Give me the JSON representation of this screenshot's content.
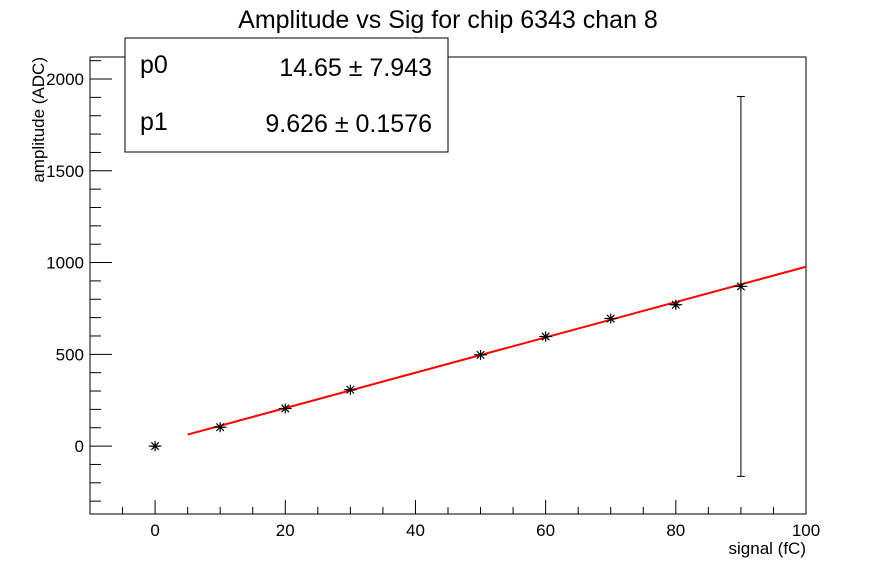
{
  "chart_data": {
    "type": "scatter",
    "title": "Amplitude vs Sig for chip 6343 chan 8",
    "xlabel": "signal (fC)",
    "ylabel": "amplitude (ADC)",
    "xlim": [
      -10,
      100
    ],
    "ylim": [
      -370,
      2120
    ],
    "x_ticks": [
      0,
      20,
      40,
      60,
      80,
      100
    ],
    "x_tick_labels": [
      "0",
      "20",
      "40",
      "60",
      "80",
      "100"
    ],
    "y_ticks": [
      0,
      500,
      1000,
      1500,
      2000
    ],
    "y_tick_labels": [
      "0",
      "500",
      "1000",
      "1500",
      "2000"
    ],
    "grid": false,
    "points": [
      {
        "x": 0,
        "y": 0,
        "xerr": 1,
        "yerr": 8
      },
      {
        "x": 10,
        "y": 103,
        "xerr": 1,
        "yerr": 10
      },
      {
        "x": 20,
        "y": 205,
        "xerr": 1,
        "yerr": 10
      },
      {
        "x": 30,
        "y": 307,
        "xerr": 1,
        "yerr": 10
      },
      {
        "x": 50,
        "y": 497,
        "xerr": 1,
        "yerr": 10
      },
      {
        "x": 60,
        "y": 597,
        "xerr": 1,
        "yerr": 10
      },
      {
        "x": 70,
        "y": 695,
        "xerr": 1,
        "yerr": 10
      },
      {
        "x": 80,
        "y": 770,
        "xerr": 1,
        "yerr": 15
      },
      {
        "x": 90,
        "y": 870,
        "xerr": 1,
        "yerr": 1035
      }
    ],
    "fit": {
      "function": "pol1",
      "x_range": [
        5,
        100
      ],
      "p0": 14.65,
      "p1": 9.626,
      "color": "#ff0000"
    },
    "stats_box": {
      "position": "top-left",
      "rows": [
        {
          "label": "p0",
          "value": "14.65 ± 7.943"
        },
        {
          "label": "p1",
          "value": "9.626 ± 0.1576"
        }
      ]
    },
    "marker_color": "#000000"
  }
}
